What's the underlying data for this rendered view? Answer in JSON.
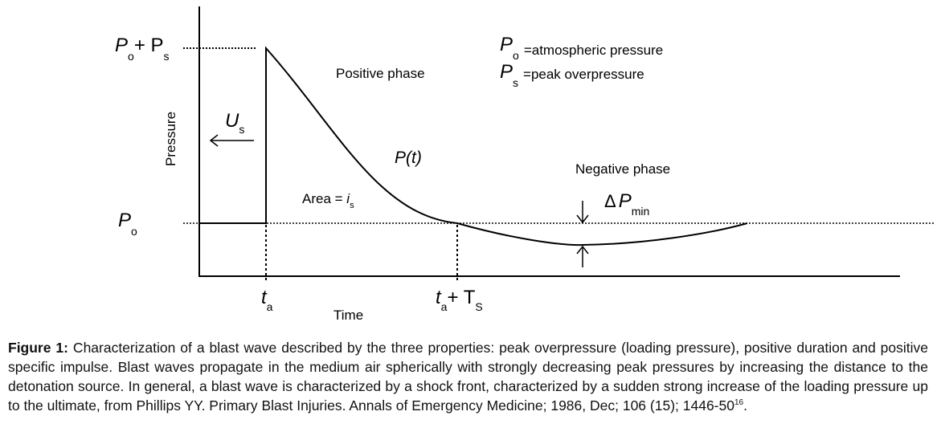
{
  "diagram": {
    "y_label_top": {
      "main": "P",
      "sub1": "o",
      "plus": "+ P",
      "sub2": "s"
    },
    "y_label_base": {
      "main": "P",
      "sub": "o"
    },
    "y_axis_label": "Pressure",
    "x_axis_label": "Time",
    "tick_ta": {
      "main": "t",
      "sub": "a"
    },
    "tick_ta_ts": {
      "main": "t",
      "sub1": "a",
      "plus": "+ T",
      "sub2": "S"
    },
    "us_label": {
      "main": "U",
      "sub": "s"
    },
    "legend": [
      {
        "symbol": "P",
        "sub": "o",
        "text": "=atmospheric pressure"
      },
      {
        "symbol": "P",
        "sub": "s",
        "text": "=peak overpressure"
      }
    ],
    "positive_phase": "Positive phase",
    "negative_phase": "Negative phase",
    "curve_label": "P(t)",
    "area_label": {
      "text": "Area = ",
      "i": "i",
      "sub": "s"
    },
    "delta_label": {
      "delta": "Δ",
      "p": "P",
      "sub": "min"
    }
  },
  "caption": {
    "label": "Figure 1:",
    "text": " Characterization of a blast wave described by the three properties: peak overpressure (loading pressure), positive duration and positive specific impulse. Blast waves propagate in the medium air spherically with strongly decreasing peak pressures by increasing the distance to the detonation source. In general, a blast wave is characterized by a shock front, characterized by a sudden strong increase of the loading pressure up to the ultimate, from Phillips YY. Primary Blast Injuries. Annals of Emergency Medicine; 1986, Dec; 106 (15); 1446-50",
    "ref": "16",
    "end": "."
  }
}
